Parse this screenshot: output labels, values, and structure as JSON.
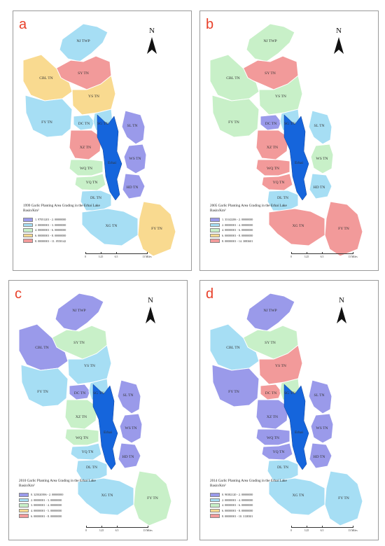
{
  "colors": {
    "class1": "#9a9aea",
    "class2": "#a6def4",
    "class3": "#c8f0c8",
    "class4": "#f9da90",
    "class5": "#f29a9a",
    "lake": "#1565dc",
    "border": "#ffffff"
  },
  "north_label": "N",
  "lake_label": "Erhai",
  "scale": {
    "ticks": [
      "0",
      "3.25",
      "6.5",
      "13 Miles"
    ]
  },
  "regions": [
    {
      "id": "NJ",
      "label": "NJ TWP"
    },
    {
      "id": "SY",
      "label": "SY TN"
    },
    {
      "id": "CBL",
      "label": "CBL TN"
    },
    {
      "id": "YS",
      "label": "YS TN"
    },
    {
      "id": "FY1",
      "label": "FY TN"
    },
    {
      "id": "DC",
      "label": "DC TN"
    },
    {
      "id": "SG",
      "label": "SG TN"
    },
    {
      "id": "SL",
      "label": "SL TN"
    },
    {
      "id": "XZ",
      "label": "XZ TN"
    },
    {
      "id": "WS",
      "label": "WS TN"
    },
    {
      "id": "WQ",
      "label": "WQ TN"
    },
    {
      "id": "YQ",
      "label": "YQ TN"
    },
    {
      "id": "HD",
      "label": "HD TN"
    },
    {
      "id": "DL",
      "label": "DL TN"
    },
    {
      "id": "XG",
      "label": "XG TN"
    },
    {
      "id": "FY2",
      "label": "FY TN"
    }
  ],
  "panels": [
    {
      "letter": "a",
      "title": "1999 Garlic Planting Area Grading in the Erhai Lake Basin/Km²",
      "legend": [
        "1. 97051201 - 2. 00000000",
        "2. 00000001 - 3. 00000000",
        "4. 00000001 - 6. 00000000",
        "6. 00000001 - 8. 00000000",
        "8. 00000001 - 11. 0550142"
      ],
      "classes": {
        "NJ": 2,
        "SY": 5,
        "CBL": 4,
        "YS": 4,
        "FY1": 2,
        "DC": 2,
        "SG": 2,
        "SL": 1,
        "XZ": 5,
        "WS": 1,
        "WQ": 3,
        "YQ": 3,
        "HD": 1,
        "DL": 2,
        "XG": 2,
        "FY2": 4
      }
    },
    {
      "letter": "b",
      "title": "2005 Garlic Planting Area Grading in the Erhai Lake Basin/Km²",
      "legend": [
        "1. 33142206 - 2. 00000000",
        "2. 00000001 - 4. 00000000",
        "4. 00000001 - 6. 00000000",
        "6. 00000001 - 8. 00000000",
        "8. 00000001 - 14. 3083601"
      ],
      "classes": {
        "NJ": 3,
        "SY": 5,
        "CBL": 3,
        "YS": 3,
        "FY1": 3,
        "DC": 1,
        "SG": 2,
        "SL": 2,
        "XZ": 5,
        "WS": 3,
        "WQ": 5,
        "YQ": 5,
        "HD": 2,
        "DL": 2,
        "XG": 5,
        "FY2": 5
      }
    },
    {
      "letter": "c",
      "title": "2010 Garlic Planting Area Grading in the Erhai Lake Basin/Km²",
      "legend": [
        "0. 325020396 - 2. 00000000",
        "2. 00000001 - 3. 00000000",
        "3. 00000001 - 4. 00000000",
        "4. 00000001 - 5. 00000000",
        "6. 00000001 - 8. 00000000"
      ],
      "classes": {
        "NJ": 1,
        "SY": 3,
        "CBL": 1,
        "YS": 2,
        "FY1": 2,
        "DC": 1,
        "SG": 2,
        "SL": 1,
        "XZ": 3,
        "WS": 1,
        "WQ": 3,
        "YQ": 2,
        "HD": 1,
        "DL": 2,
        "XG": 2,
        "FY2": 3
      }
    },
    {
      "letter": "d",
      "title": "2014 Garlic Planting Area Grading in the Erhai Lake Basin/Km²",
      "legend": [
        "0. 90382120 - 2. 00000000",
        "2. 00000001 - 4. 00000000",
        "4. 00000001 - 6. 00000000",
        "6. 00000001 - 8. 00000000",
        "8. 00000001 - 10. 3138301"
      ],
      "classes": {
        "NJ": 1,
        "SY": 3,
        "CBL": 2,
        "YS": 5,
        "FY1": 1,
        "DC": 5,
        "SG": 3,
        "SL": 1,
        "XZ": 1,
        "WS": 1,
        "WQ": 1,
        "YQ": 1,
        "HD": 1,
        "DL": 2,
        "XG": 2,
        "FY2": 2
      }
    }
  ]
}
